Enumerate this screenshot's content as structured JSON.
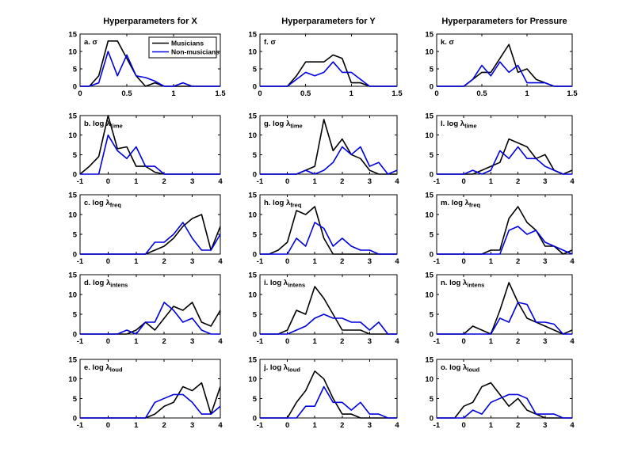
{
  "figure": {
    "background": "#ffffff",
    "column_titles": [
      "Hyperparameters for X",
      "Hyperparameters for Y",
      "Hyperparameters for Pressure"
    ],
    "legend": {
      "position": "top-right of subplot a",
      "entries": [
        {
          "label": "Musicians",
          "color": "#000000"
        },
        {
          "label": "Non-musicians",
          "color": "#0000dd"
        }
      ]
    },
    "colors": {
      "musicians": "#000000",
      "non_musicians": "#0000dd",
      "axis": "#000000",
      "text": "#000000"
    }
  },
  "chart_data": {
    "type": "line",
    "description": "3x5 grid of histogram-style line plots of posterior hyperparameter distributions, Musicians (black) vs Non-musicians (blue). Columns: X, Y, Pressure. Rows: sigma, log lambda_time, log lambda_freq, log lambda_intens, log lambda_loud.",
    "ylim": [
      0,
      15
    ],
    "yticks": [
      0,
      5,
      10,
      15
    ],
    "ytick_labels": [
      "0",
      "5",
      "10",
      "15"
    ],
    "grid": false,
    "x_axes": {
      "sigma": {
        "xlim": [
          0,
          1.5
        ],
        "xticks": [
          0,
          0.5,
          1,
          1.5
        ],
        "xtick_labels": [
          "0",
          "0.5",
          "1",
          "1.5"
        ],
        "x": [
          0,
          0.1,
          0.2,
          0.3,
          0.4,
          0.5,
          0.6,
          0.7,
          0.8,
          0.9,
          1.0,
          1.1,
          1.2,
          1.3,
          1.4,
          1.5
        ]
      },
      "log": {
        "xlim": [
          -1,
          4
        ],
        "xticks": [
          -1,
          0,
          1,
          2,
          3,
          4
        ],
        "xtick_labels": [
          "-1",
          "0",
          "1",
          "2",
          "3",
          "4"
        ],
        "x": [
          -1,
          -0.667,
          -0.333,
          0,
          0.333,
          0.667,
          1,
          1.333,
          1.667,
          2,
          2.333,
          2.667,
          3,
          3.333,
          3.667,
          4
        ]
      }
    },
    "subplots": [
      {
        "id": "a",
        "row": 0,
        "col": 0,
        "label": "a. σ",
        "sub": "",
        "axis": "sigma",
        "legend": true,
        "musicians": [
          0,
          0,
          3,
          13,
          13,
          8,
          3,
          0,
          1,
          0,
          0,
          0,
          0,
          0,
          0,
          0
        ],
        "non_musicians": [
          0,
          0,
          1,
          10,
          3,
          9,
          3,
          2.5,
          1.5,
          0,
          0,
          1,
          0,
          0,
          0,
          0
        ]
      },
      {
        "id": "b",
        "row": 1,
        "col": 0,
        "label": "b. log λ",
        "sub": "time",
        "axis": "log",
        "musicians": [
          0,
          2,
          4.5,
          15,
          6.5,
          7,
          2,
          2,
          0.5,
          0,
          0,
          0,
          0,
          0,
          0,
          0
        ],
        "non_musicians": [
          0,
          0,
          0,
          10,
          6,
          4,
          7,
          2,
          2,
          0,
          0,
          0,
          0,
          0,
          0,
          0
        ]
      },
      {
        "id": "c",
        "row": 2,
        "col": 0,
        "label": "c. log λ",
        "sub": "freq",
        "axis": "log",
        "musicians": [
          0,
          0,
          0,
          0,
          0,
          0,
          0,
          0,
          1,
          2,
          4,
          7,
          9,
          10,
          1,
          7
        ],
        "non_musicians": [
          0,
          0,
          0,
          0,
          0,
          0,
          0,
          0,
          3,
          3,
          5,
          8,
          4,
          1,
          1,
          5
        ]
      },
      {
        "id": "d",
        "row": 3,
        "col": 0,
        "label": "d. log λ",
        "sub": "intens",
        "axis": "log",
        "musicians": [
          0,
          0,
          0,
          0,
          0,
          0,
          1,
          3,
          1,
          4,
          7,
          6,
          8,
          3,
          2,
          6
        ],
        "non_musicians": [
          0,
          0,
          0,
          0,
          0,
          1,
          0,
          3,
          3,
          8,
          6,
          3,
          4,
          1,
          0,
          0
        ]
      },
      {
        "id": "e",
        "row": 4,
        "col": 0,
        "label": "e. log λ",
        "sub": "loud",
        "axis": "log",
        "musicians": [
          0,
          0,
          0,
          0,
          0,
          0,
          0,
          0,
          1,
          3,
          4,
          8,
          7,
          9,
          1,
          8
        ],
        "non_musicians": [
          0,
          0,
          0,
          0,
          0,
          0,
          0,
          0,
          4,
          5,
          6,
          6,
          4,
          1,
          1,
          3
        ]
      },
      {
        "id": "f",
        "row": 0,
        "col": 1,
        "label": "f. σ",
        "sub": "",
        "axis": "sigma",
        "musicians": [
          0,
          0,
          0,
          0,
          3,
          7,
          7,
          7,
          9,
          8,
          1,
          1,
          0,
          0,
          0,
          0
        ],
        "non_musicians": [
          0,
          0,
          0,
          0,
          2,
          4,
          3,
          4,
          7,
          4,
          4,
          2,
          0,
          0,
          0,
          0
        ]
      },
      {
        "id": "g",
        "row": 1,
        "col": 1,
        "label": "g. log λ",
        "sub": "time",
        "axis": "log",
        "musicians": [
          0,
          0,
          0,
          0,
          0,
          1,
          2,
          14,
          6,
          9,
          5,
          4,
          1,
          0,
          0,
          0
        ],
        "non_musicians": [
          0,
          0,
          0,
          0,
          0,
          1,
          0,
          1,
          3,
          7,
          5,
          7,
          2,
          3,
          0,
          1
        ]
      },
      {
        "id": "h",
        "row": 2,
        "col": 1,
        "label": "h. log λ",
        "sub": "freq",
        "axis": "log",
        "musicians": [
          0,
          0,
          1,
          3,
          11,
          10,
          12,
          4,
          0,
          0,
          0,
          0,
          0,
          0,
          0,
          0
        ],
        "non_musicians": [
          0,
          0,
          0,
          0,
          4,
          2,
          8,
          6.5,
          2,
          4,
          2,
          1,
          1,
          0,
          0,
          0
        ]
      },
      {
        "id": "i",
        "row": 3,
        "col": 1,
        "label": "i. log λ",
        "sub": "intens",
        "axis": "log",
        "musicians": [
          0,
          0,
          0,
          1,
          6,
          5,
          12,
          9,
          5,
          1,
          1,
          1,
          0,
          0,
          0,
          0
        ],
        "non_musicians": [
          0,
          0,
          0,
          0,
          1,
          2,
          4,
          5,
          4,
          4,
          3,
          3,
          1,
          3,
          0,
          0
        ]
      },
      {
        "id": "j",
        "row": 4,
        "col": 1,
        "label": "j. log λ",
        "sub": "loud",
        "axis": "log",
        "musicians": [
          0,
          0,
          0,
          0,
          4,
          7,
          12,
          10,
          5,
          1,
          1,
          0,
          0,
          0,
          0,
          0
        ],
        "non_musicians": [
          0,
          0,
          0,
          0,
          0,
          3,
          3,
          8,
          4,
          4,
          2,
          4,
          1,
          1,
          0,
          0
        ]
      },
      {
        "id": "k",
        "row": 0,
        "col": 2,
        "label": "k. σ",
        "sub": "",
        "axis": "sigma",
        "musicians": [
          0,
          0,
          0,
          0,
          2,
          4,
          4,
          8,
          12,
          4,
          5,
          2,
          1,
          0,
          0,
          0
        ],
        "non_musicians": [
          0,
          0,
          0,
          0,
          2,
          6,
          3,
          7,
          4,
          6,
          1,
          1,
          1,
          0,
          0,
          0
        ]
      },
      {
        "id": "l",
        "row": 1,
        "col": 2,
        "label": "l. log λ",
        "sub": "time",
        "axis": "log",
        "musicians": [
          0,
          0,
          0,
          0,
          0,
          1,
          2,
          3,
          9,
          8,
          7,
          4,
          5,
          1,
          0,
          1
        ],
        "non_musicians": [
          0,
          0,
          0,
          0,
          1,
          0,
          1,
          6,
          4,
          7,
          4,
          4,
          2,
          1,
          0,
          0
        ]
      },
      {
        "id": "m",
        "row": 2,
        "col": 2,
        "label": "m. log λ",
        "sub": "freq",
        "axis": "log",
        "musicians": [
          0,
          0,
          0,
          0,
          0,
          0,
          1,
          1,
          9,
          12,
          8,
          6,
          2,
          2,
          0,
          1
        ],
        "non_musicians": [
          0,
          0,
          0,
          0,
          0,
          0,
          0,
          0,
          6,
          7,
          5,
          6,
          3,
          2,
          1,
          0
        ]
      },
      {
        "id": "n",
        "row": 3,
        "col": 2,
        "label": "n. log λ",
        "sub": "intens",
        "axis": "log",
        "musicians": [
          0,
          0,
          0,
          0,
          2,
          1,
          0,
          6,
          13,
          8,
          4,
          3,
          2,
          1,
          0,
          1
        ],
        "non_musicians": [
          0,
          0,
          0,
          0,
          0,
          0,
          0,
          4,
          3,
          8,
          7.5,
          3,
          3,
          2.5,
          0,
          0
        ]
      },
      {
        "id": "o",
        "row": 4,
        "col": 2,
        "label": "o. log λ",
        "sub": "loud",
        "axis": "log",
        "musicians": [
          0,
          0,
          0,
          3,
          4,
          8,
          9,
          6,
          3,
          5,
          2,
          1,
          0,
          0,
          0,
          0
        ],
        "non_musicians": [
          0,
          0,
          0,
          0,
          2,
          1,
          4,
          5,
          6,
          6,
          5,
          1,
          1,
          1,
          0,
          0
        ]
      }
    ]
  }
}
